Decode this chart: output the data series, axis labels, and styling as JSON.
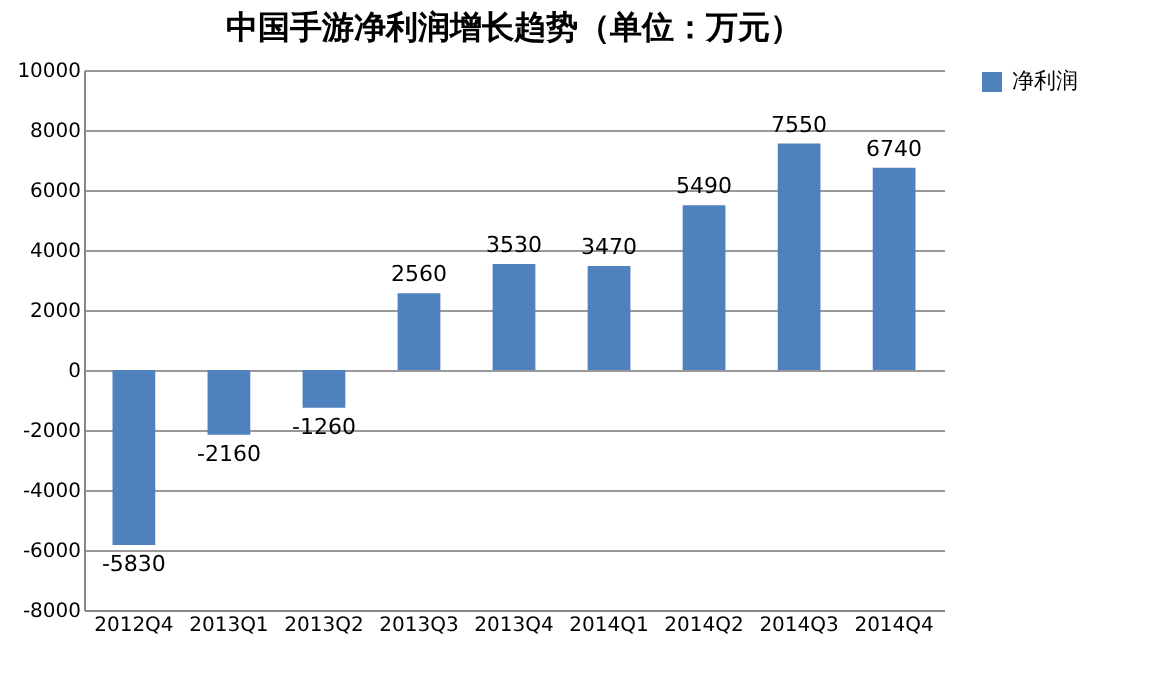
{
  "chart_data": {
    "type": "bar",
    "title": "中国手游净利润增长趋势（单位：万元）",
    "categories": [
      "2012Q4",
      "2013Q1",
      "2013Q2",
      "2013Q3",
      "2013Q4",
      "2014Q1",
      "2014Q2",
      "2014Q3",
      "2014Q4"
    ],
    "series": [
      {
        "name": "净利润",
        "color": "#4f81bd",
        "values": [
          -5830,
          -2160,
          -1260,
          2560,
          3530,
          3470,
          5490,
          7550,
          6740
        ]
      }
    ],
    "ylim": [
      -8000,
      10000
    ],
    "yticks": [
      -8000,
      -6000,
      -4000,
      -2000,
      0,
      2000,
      4000,
      6000,
      8000,
      10000
    ],
    "grid": "y",
    "legend": "right",
    "data_labels": true
  }
}
